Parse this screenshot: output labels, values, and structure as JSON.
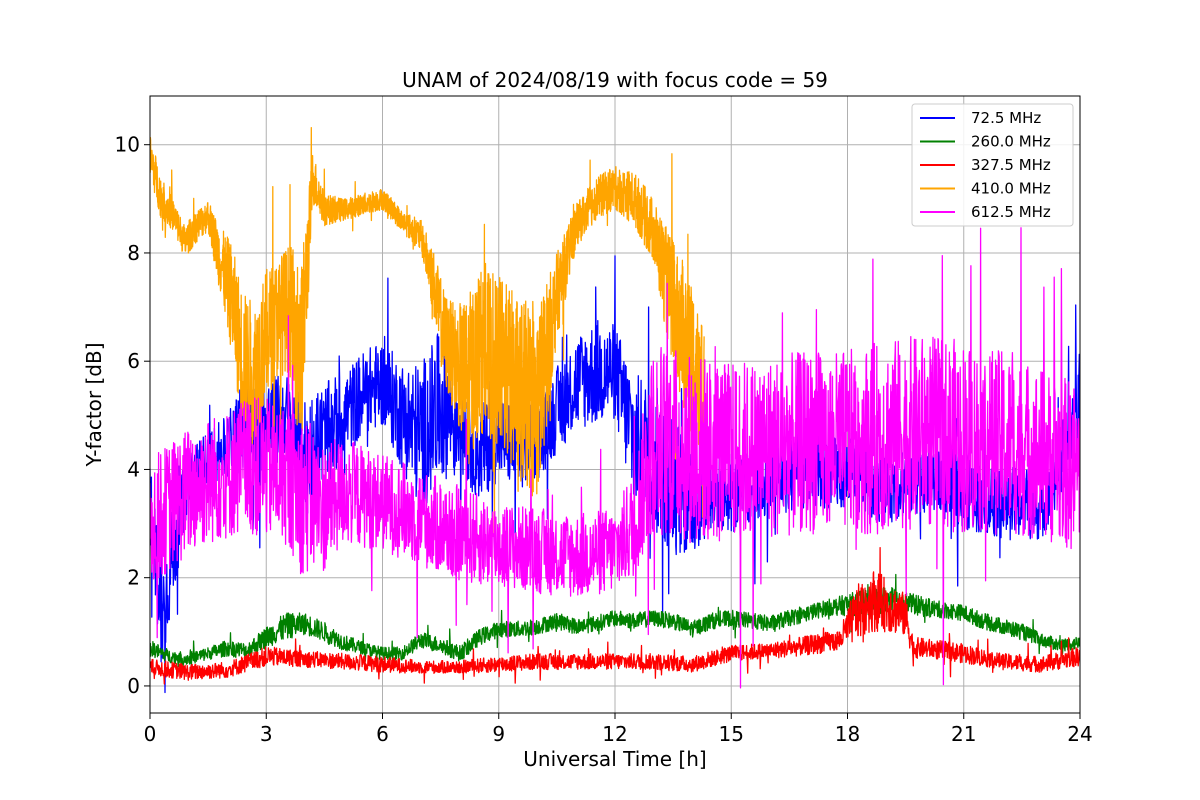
{
  "chart_data": {
    "type": "line",
    "title": "UNAM of 2024/08/19 with focus code = 59",
    "xlabel": "Universal Time [h]",
    "ylabel": "Y-factor [dB]",
    "xlim": [
      0,
      24
    ],
    "ylim": [
      -0.5,
      10.9
    ],
    "xticks": [
      0,
      3,
      6,
      9,
      12,
      15,
      18,
      21,
      24
    ],
    "yticks": [
      0,
      2,
      4,
      6,
      8,
      10
    ],
    "grid": true,
    "legend_position": "top-right",
    "series": [
      {
        "name": " 72.5 MHz",
        "color": "#0000ff",
        "x": [
          0,
          0.3,
          0.6,
          1.0,
          1.5,
          2.0,
          2.5,
          3.0,
          3.5,
          4.0,
          4.5,
          5.0,
          5.5,
          6.0,
          6.5,
          7.0,
          7.5,
          8.0,
          8.5,
          9.0,
          9.5,
          10.0,
          10.5,
          11.0,
          11.5,
          12.0,
          12.5,
          13.0,
          13.5,
          14.0,
          14.5,
          15.0,
          16.0,
          17.0,
          18.0,
          19.0,
          20.0,
          21.0,
          22.0,
          23.0,
          23.5,
          24.0
        ],
        "y": [
          3.4,
          1.2,
          2.5,
          3.9,
          4.2,
          4.4,
          4.9,
          4.8,
          5.0,
          4.2,
          4.6,
          5.0,
          5.4,
          5.6,
          5.0,
          4.6,
          5.2,
          4.9,
          4.3,
          4.6,
          4.4,
          4.5,
          5.1,
          5.6,
          5.8,
          5.8,
          4.5,
          4.2,
          3.8,
          3.3,
          3.6,
          3.5,
          3.8,
          4.0,
          3.9,
          3.7,
          3.9,
          3.6,
          3.4,
          3.3,
          4.1,
          5.2
        ],
        "amplitude": [
          0.8,
          1.0,
          0.9,
          0.5,
          0.5,
          0.6,
          0.9,
          0.9,
          0.8,
          1.2,
          1.0,
          0.8,
          0.8,
          0.8,
          1.0,
          1.4,
          1.4,
          1.0,
          0.9,
          0.8,
          0.8,
          0.7,
          0.8,
          0.9,
          1.0,
          0.9,
          1.3,
          1.4,
          1.4,
          0.9,
          0.7,
          0.7,
          0.7,
          0.7,
          0.7,
          0.7,
          0.7,
          0.7,
          0.7,
          0.6,
          0.7,
          1.0
        ]
      },
      {
        "name": "260.0 MHz",
        "color": "#008000",
        "x": [
          0,
          0.5,
          1.0,
          1.5,
          2.0,
          2.5,
          3.0,
          3.5,
          4.0,
          4.5,
          5.0,
          5.5,
          6.0,
          6.5,
          7.0,
          7.5,
          8.0,
          8.5,
          9.0,
          9.5,
          10.0,
          10.5,
          11.0,
          11.5,
          12.0,
          12.5,
          13.0,
          13.5,
          14.0,
          14.5,
          15.0,
          15.5,
          16.0,
          16.5,
          17.0,
          17.5,
          18.0,
          18.5,
          19.0,
          19.5,
          20.0,
          20.5,
          21.0,
          21.5,
          22.0,
          22.5,
          23.0,
          23.5,
          24.0
        ],
        "y": [
          0.7,
          0.55,
          0.5,
          0.6,
          0.7,
          0.65,
          0.9,
          1.1,
          1.15,
          1.0,
          0.8,
          0.7,
          0.6,
          0.6,
          0.85,
          0.75,
          0.6,
          0.9,
          1.05,
          1.05,
          1.1,
          1.2,
          1.1,
          1.15,
          1.25,
          1.2,
          1.25,
          1.2,
          1.05,
          1.2,
          1.25,
          1.2,
          1.15,
          1.25,
          1.35,
          1.45,
          1.5,
          1.55,
          1.6,
          1.55,
          1.45,
          1.4,
          1.35,
          1.2,
          1.1,
          1.0,
          0.85,
          0.75,
          0.8
        ],
        "amplitude": [
          0.15,
          0.12,
          0.12,
          0.12,
          0.15,
          0.15,
          0.2,
          0.25,
          0.2,
          0.18,
          0.15,
          0.12,
          0.12,
          0.12,
          0.15,
          0.15,
          0.15,
          0.15,
          0.15,
          0.15,
          0.15,
          0.15,
          0.15,
          0.15,
          0.15,
          0.15,
          0.15,
          0.15,
          0.15,
          0.15,
          0.15,
          0.15,
          0.15,
          0.15,
          0.15,
          0.15,
          0.2,
          0.25,
          0.25,
          0.2,
          0.18,
          0.15,
          0.15,
          0.15,
          0.15,
          0.15,
          0.12,
          0.12,
          0.12
        ]
      },
      {
        "name": "327.5 MHz",
        "color": "#ff0000",
        "x": [
          0,
          1.0,
          2.0,
          3.0,
          4.0,
          5.0,
          6.0,
          7.0,
          8.0,
          9.0,
          10.0,
          11.0,
          12.0,
          13.0,
          14.0,
          15.0,
          16.0,
          17.0,
          17.8,
          18.2,
          18.6,
          19.0,
          19.5,
          19.7,
          20.0,
          21.0,
          22.0,
          23.0,
          24.0
        ],
        "y": [
          0.35,
          0.25,
          0.3,
          0.55,
          0.5,
          0.45,
          0.4,
          0.35,
          0.35,
          0.4,
          0.45,
          0.45,
          0.45,
          0.45,
          0.4,
          0.6,
          0.65,
          0.75,
          0.85,
          1.3,
          1.6,
          1.5,
          1.3,
          0.7,
          0.7,
          0.6,
          0.45,
          0.4,
          0.55
        ],
        "amplitude": [
          0.15,
          0.15,
          0.15,
          0.18,
          0.15,
          0.15,
          0.15,
          0.12,
          0.12,
          0.15,
          0.15,
          0.15,
          0.15,
          0.15,
          0.15,
          0.15,
          0.15,
          0.18,
          0.2,
          0.5,
          0.6,
          0.5,
          0.4,
          0.2,
          0.18,
          0.18,
          0.15,
          0.15,
          0.18
        ]
      },
      {
        "name": "410.0 MHz",
        "color": "#ffa500",
        "x": [
          0,
          0.3,
          0.6,
          0.9,
          1.2,
          1.5,
          1.8,
          2.1,
          2.4,
          2.7,
          3.0,
          3.3,
          3.6,
          3.9,
          4.2,
          4.5,
          5.0,
          5.5,
          6.0,
          6.5,
          7.0,
          7.3,
          7.6,
          7.9,
          8.2,
          8.5,
          9.0,
          9.5,
          10.0,
          10.5,
          11.0,
          11.5,
          12.0,
          12.5,
          13.0,
          13.5,
          14.0,
          14.3
        ],
        "y": [
          9.8,
          9.0,
          8.7,
          8.2,
          8.5,
          8.7,
          7.9,
          7.2,
          6.0,
          5.8,
          6.5,
          6.8,
          7.0,
          6.0,
          9.4,
          8.8,
          8.8,
          8.9,
          9.0,
          8.6,
          8.3,
          7.5,
          6.4,
          6.0,
          5.6,
          6.2,
          6.0,
          5.5,
          5.2,
          7.2,
          8.5,
          9.0,
          9.2,
          9.0,
          8.4,
          7.0,
          6.0,
          5.0
        ],
        "amplitude": [
          0.4,
          0.4,
          0.3,
          0.3,
          0.3,
          0.3,
          0.6,
          1.0,
          1.3,
          1.3,
          1.2,
          1.1,
          1.2,
          1.8,
          0.5,
          0.3,
          0.2,
          0.2,
          0.2,
          0.2,
          0.3,
          0.6,
          0.9,
          1.0,
          1.6,
          1.5,
          1.6,
          1.7,
          1.8,
          0.8,
          0.4,
          0.4,
          0.4,
          0.5,
          0.6,
          1.2,
          1.5,
          1.5
        ]
      },
      {
        "name": "612.5 MHz",
        "color": "#ff00ff",
        "x": [
          0,
          0.5,
          1.0,
          1.5,
          2.0,
          2.5,
          3.0,
          3.5,
          4.0,
          4.5,
          5.0,
          6.0,
          7.0,
          8.0,
          9.0,
          10.0,
          11.0,
          12.0,
          12.5,
          13.0,
          14.0,
          15.0,
          16.0,
          17.0,
          18.0,
          19.0,
          20.0,
          21.0,
          22.0,
          23.0,
          24.0
        ],
        "y": [
          3.0,
          3.3,
          3.6,
          3.8,
          3.9,
          4.1,
          4.0,
          3.9,
          3.5,
          3.3,
          3.6,
          3.4,
          3.1,
          2.8,
          2.6,
          2.5,
          2.4,
          2.5,
          3.0,
          4.6,
          4.4,
          4.3,
          4.4,
          4.5,
          4.5,
          4.6,
          4.7,
          4.6,
          4.5,
          4.3,
          4.0
        ],
        "amplitude": [
          1.2,
          1.2,
          1.2,
          1.2,
          1.2,
          1.3,
          1.3,
          1.3,
          1.5,
          1.2,
          1.0,
          0.9,
          0.9,
          0.9,
          0.8,
          0.8,
          0.8,
          0.8,
          1.0,
          1.8,
          1.8,
          1.7,
          1.7,
          1.7,
          1.7,
          1.8,
          1.8,
          1.8,
          1.7,
          1.6,
          1.6
        ]
      }
    ]
  }
}
